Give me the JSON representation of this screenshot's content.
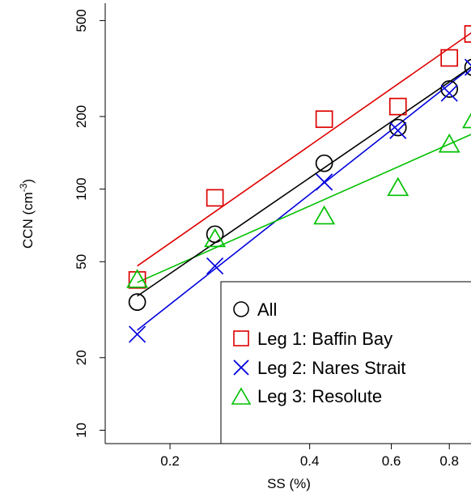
{
  "chart_data": {
    "type": "scatter",
    "title": "",
    "xlabel": "SS (%)",
    "ylabel": "CCN (cm",
    "ylabel_superscript": "-3",
    "ylabel_close": ")",
    "x_scale": "log",
    "y_scale": "log",
    "xlim": [
      0.145,
      0.92
    ],
    "ylim": [
      8.8,
      590
    ],
    "x_ticks": [
      0.2,
      0.4,
      0.6,
      0.8
    ],
    "x_tick_labels": [
      "0.2",
      "0.4",
      "0.6",
      "0.8"
    ],
    "y_ticks": [
      10,
      20,
      50,
      100,
      200,
      500
    ],
    "y_tick_labels": [
      "10",
      "20",
      "50",
      "100",
      "200",
      "500"
    ],
    "grid": false,
    "legend_position": "bottom-right",
    "series": [
      {
        "name": "All",
        "marker": "circle",
        "color": "#000000",
        "x": [
          0.17,
          0.25,
          0.43,
          0.62,
          0.8,
          0.9
        ],
        "y": [
          34,
          65,
          128,
          180,
          260,
          320
        ],
        "fit_x": [
          0.17,
          0.9
        ],
        "fit_y": [
          36,
          325
        ]
      },
      {
        "name": "Leg 1: Baffin Bay",
        "marker": "square",
        "color": "#dd0000",
        "x": [
          0.17,
          0.25,
          0.43,
          0.62,
          0.8,
          0.9
        ],
        "y": [
          42,
          92,
          195,
          220,
          350,
          440
        ],
        "fit_x": [
          0.17,
          0.9
        ],
        "fit_y": [
          48,
          450
        ]
      },
      {
        "name": "Leg 2: Nares Strait",
        "marker": "x",
        "color": "#0000dd",
        "x": [
          0.17,
          0.25,
          0.43,
          0.62,
          0.8,
          0.9
        ],
        "y": [
          25,
          48,
          107,
          175,
          250,
          320
        ],
        "fit_x": [
          0.17,
          0.9
        ],
        "fit_y": [
          26,
          325
        ]
      },
      {
        "name": "Leg 3: Resolute",
        "marker": "triangle",
        "color": "#00c000",
        "x": [
          0.17,
          0.25,
          0.43,
          0.62,
          0.8,
          0.9
        ],
        "y": [
          42,
          62,
          77,
          101,
          153,
          193
        ],
        "fit_x": [
          0.17,
          0.9
        ],
        "fit_y": [
          41,
          170
        ]
      }
    ]
  }
}
